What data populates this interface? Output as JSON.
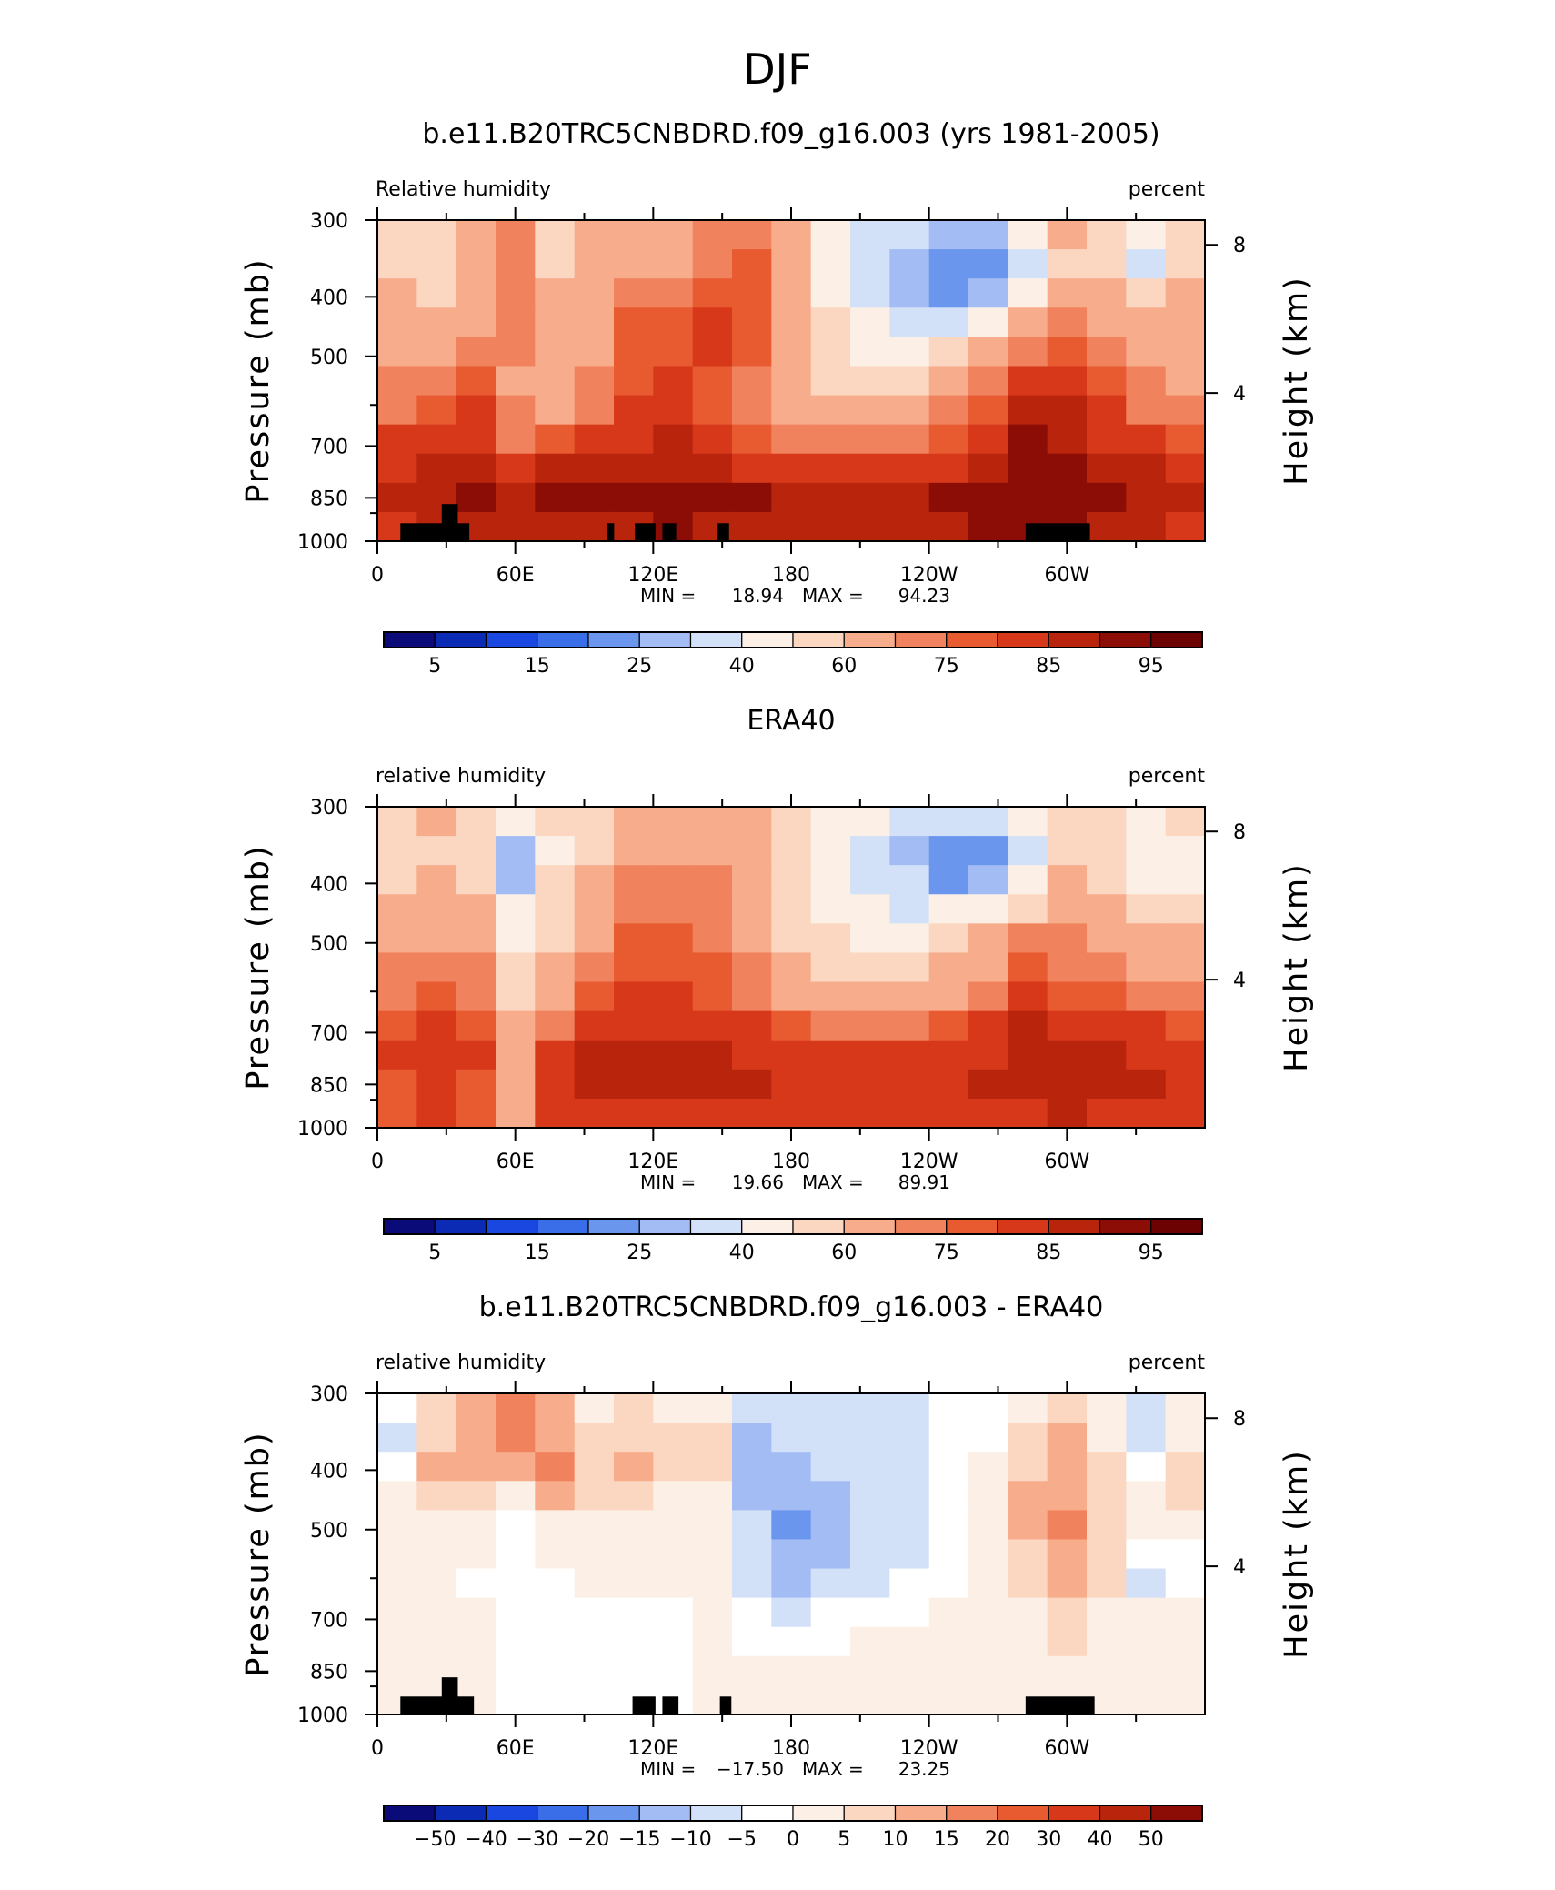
{
  "figure": {
    "super_title": "DJF"
  },
  "colors": {
    "rh_levels": [
      "#0a0a78",
      "#0c2bb4",
      "#1947e0",
      "#3a6ee8",
      "#6b96ee",
      "#a3bdf4",
      "#d2e0f8",
      "#fcf0e6",
      "#fbd6c0",
      "#f7ac8c",
      "#f0835e",
      "#e85a30",
      "#d8381a",
      "#b8240c",
      "#8c0c06",
      "#6c0202"
    ],
    "diff_levels": [
      "#0a0a78",
      "#0c2bb4",
      "#1947e0",
      "#3a6ee8",
      "#6b96ee",
      "#a3bdf4",
      "#d2e0f8",
      "#ffffff",
      "#fcf0e6",
      "#fbd6c0",
      "#f7ac8c",
      "#f0835e",
      "#e85a30",
      "#d8381a",
      "#b8240c",
      "#8c0c06"
    ],
    "topography": "#000000"
  },
  "chart_data": [
    {
      "type": "heatmap",
      "title": "b.e11.B20TRC5CNBDRD.f09_g16.003 (yrs 1981-2005)",
      "left_label": "Relative humidity",
      "right_label": "percent",
      "ylabel": "Pressure (mb)",
      "ylabel2": "Height (km)",
      "x_ticks": [
        "0",
        "60E",
        "120E",
        "180",
        "120W",
        "60W"
      ],
      "x_tick_values": [
        0,
        60,
        120,
        180,
        240,
        300
      ],
      "xlim": [
        0,
        360
      ],
      "y_ticks": [
        "300",
        "400",
        "500",
        "700",
        "850",
        "1000"
      ],
      "y_tick_values": [
        300,
        400,
        500,
        700,
        850,
        1000
      ],
      "ylim": [
        300,
        1000
      ],
      "y2_ticks": [
        "8",
        "4"
      ],
      "y2_tick_values": [
        8,
        4
      ],
      "stats": {
        "min_label": "MIN =",
        "min": "18.94",
        "max_label": "MAX =",
        "max": "94.23"
      },
      "colorbar": {
        "labels": [
          "5",
          "15",
          "25",
          "40",
          "60",
          "75",
          "85",
          "95"
        ]
      },
      "grid": [
        [
          55,
          52,
          60,
          72,
          55,
          60,
          62,
          62,
          70,
          74,
          60,
          48,
          38,
          30,
          28,
          26,
          40,
          62,
          58,
          40,
          56
        ],
        [
          58,
          55,
          62,
          72,
          58,
          62,
          68,
          68,
          74,
          76,
          62,
          46,
          34,
          27,
          24,
          22,
          34,
          58,
          56,
          38,
          58
        ],
        [
          60,
          58,
          64,
          72,
          60,
          64,
          74,
          74,
          78,
          78,
          64,
          48,
          36,
          28,
          22,
          28,
          46,
          64,
          60,
          50,
          60
        ],
        [
          62,
          62,
          68,
          72,
          62,
          66,
          76,
          76,
          80,
          78,
          64,
          50,
          40,
          34,
          36,
          44,
          60,
          70,
          66,
          62,
          64
        ],
        [
          66,
          68,
          72,
          70,
          64,
          68,
          78,
          78,
          80,
          76,
          64,
          54,
          48,
          46,
          52,
          62,
          74,
          78,
          72,
          68,
          66
        ],
        [
          70,
          72,
          76,
          68,
          66,
          70,
          78,
          80,
          78,
          74,
          66,
          58,
          56,
          58,
          64,
          72,
          82,
          84,
          76,
          70,
          66
        ],
        [
          74,
          76,
          80,
          70,
          68,
          72,
          80,
          82,
          78,
          72,
          66,
          62,
          62,
          64,
          70,
          78,
          88,
          86,
          80,
          74,
          72
        ],
        [
          80,
          82,
          84,
          74,
          76,
          80,
          82,
          86,
          80,
          76,
          72,
          70,
          70,
          72,
          76,
          82,
          90,
          88,
          84,
          80,
          78
        ],
        [
          84,
          86,
          88,
          84,
          86,
          86,
          86,
          88,
          86,
          84,
          82,
          80,
          80,
          82,
          84,
          88,
          92,
          90,
          88,
          86,
          84
        ],
        [
          86,
          88,
          90,
          88,
          90,
          90,
          90,
          92,
          90,
          90,
          88,
          88,
          88,
          88,
          90,
          92,
          94,
          92,
          90,
          88,
          86
        ],
        [
          84,
          86,
          88,
          86,
          88,
          88,
          88,
          90,
          88,
          88,
          88,
          88,
          88,
          88,
          88,
          90,
          92,
          90,
          88,
          86,
          84
        ]
      ],
      "topography": [
        {
          "x0": 10,
          "x1": 40,
          "p": 935
        },
        {
          "x0": 28,
          "x1": 35,
          "p": 870
        },
        {
          "x0": 100,
          "x1": 103,
          "p": 935
        },
        {
          "x0": 112,
          "x1": 121,
          "p": 935
        },
        {
          "x0": 124,
          "x1": 130,
          "p": 935
        },
        {
          "x0": 148,
          "x1": 153,
          "p": 935
        },
        {
          "x0": 282,
          "x1": 310,
          "p": 935
        }
      ]
    },
    {
      "type": "heatmap",
      "title": "ERA40",
      "left_label": "relative humidity",
      "right_label": "percent",
      "ylabel": "Pressure (mb)",
      "ylabel2": "Height (km)",
      "x_ticks": [
        "0",
        "60E",
        "120E",
        "180",
        "120W",
        "60W"
      ],
      "x_tick_values": [
        0,
        60,
        120,
        180,
        240,
        300
      ],
      "xlim": [
        0,
        360
      ],
      "y_ticks": [
        "300",
        "400",
        "500",
        "700",
        "850",
        "1000"
      ],
      "y_tick_values": [
        300,
        400,
        500,
        700,
        850,
        1000
      ],
      "ylim": [
        300,
        1000
      ],
      "y2_ticks": [
        "8",
        "4"
      ],
      "y2_tick_values": [
        8,
        4
      ],
      "stats": {
        "min_label": "MIN =",
        "min": "19.66",
        "max_label": "MAX =",
        "max": "89.91"
      },
      "colorbar": {
        "labels": [
          "5",
          "15",
          "25",
          "40",
          "60",
          "75",
          "85",
          "95"
        ]
      },
      "grid": [
        [
          56,
          60,
          58,
          40,
          56,
          58,
          64,
          66,
          66,
          60,
          54,
          46,
          40,
          34,
          32,
          30,
          42,
          58,
          56,
          44,
          50
        ],
        [
          56,
          58,
          54,
          26,
          48,
          58,
          66,
          68,
          68,
          62,
          54,
          44,
          34,
          28,
          24,
          22,
          34,
          56,
          54,
          40,
          44
        ],
        [
          58,
          60,
          56,
          28,
          50,
          62,
          70,
          72,
          70,
          64,
          54,
          44,
          36,
          30,
          24,
          26,
          42,
          62,
          58,
          44,
          48
        ],
        [
          62,
          64,
          60,
          40,
          54,
          66,
          74,
          74,
          72,
          66,
          56,
          48,
          42,
          38,
          40,
          46,
          58,
          66,
          62,
          56,
          56
        ],
        [
          66,
          68,
          66,
          48,
          58,
          68,
          76,
          76,
          74,
          68,
          58,
          52,
          48,
          48,
          54,
          62,
          70,
          70,
          66,
          62,
          62
        ],
        [
          70,
          72,
          70,
          52,
          62,
          72,
          78,
          78,
          76,
          70,
          60,
          56,
          56,
          58,
          62,
          68,
          78,
          74,
          70,
          68,
          66
        ],
        [
          74,
          76,
          74,
          56,
          66,
          76,
          80,
          80,
          78,
          74,
          66,
          62,
          62,
          64,
          68,
          74,
          84,
          78,
          76,
          72,
          70
        ],
        [
          78,
          80,
          78,
          60,
          72,
          80,
          84,
          84,
          82,
          80,
          76,
          72,
          72,
          74,
          76,
          80,
          86,
          82,
          82,
          80,
          78
        ],
        [
          80,
          84,
          80,
          62,
          82,
          86,
          88,
          88,
          86,
          84,
          82,
          80,
          80,
          80,
          82,
          84,
          88,
          86,
          86,
          84,
          82
        ],
        [
          78,
          82,
          78,
          62,
          84,
          88,
          88,
          88,
          86,
          86,
          84,
          82,
          82,
          82,
          84,
          86,
          86,
          88,
          86,
          86,
          84
        ],
        [
          76,
          80,
          76,
          60,
          80,
          84,
          84,
          84,
          84,
          84,
          82,
          80,
          80,
          80,
          82,
          84,
          84,
          86,
          84,
          84,
          82
        ]
      ]
    },
    {
      "type": "heatmap",
      "title": "b.e11.B20TRC5CNBDRD.f09_g16.003 - ERA40",
      "left_label": "relative humidity",
      "right_label": "percent",
      "ylabel": "Pressure (mb)",
      "ylabel2": "Height (km)",
      "x_ticks": [
        "0",
        "60E",
        "120E",
        "180",
        "120W",
        "60W"
      ],
      "x_tick_values": [
        0,
        60,
        120,
        180,
        240,
        300
      ],
      "xlim": [
        0,
        360
      ],
      "y_ticks": [
        "300",
        "400",
        "500",
        "700",
        "850",
        "1000"
      ],
      "y_tick_values": [
        300,
        400,
        500,
        700,
        850,
        1000
      ],
      "ylim": [
        300,
        1000
      ],
      "y2_ticks": [
        "8",
        "4"
      ],
      "y2_tick_values": [
        8,
        4
      ],
      "stats": {
        "min_label": "MIN =",
        "min": "−17.50",
        "max_label": "MAX =",
        "max": "23.25"
      },
      "colorbar": {
        "labels": [
          "−50",
          "−40",
          "−30",
          "−20",
          "−15",
          "−10",
          "−5",
          "0",
          "5",
          "10",
          "15",
          "20",
          "30",
          "40",
          "50"
        ]
      },
      "grid": [
        [
          -4,
          8,
          14,
          18,
          10,
          4,
          6,
          4,
          4,
          -10,
          -8,
          -10,
          -8,
          -6,
          -4,
          -2,
          4,
          8,
          4,
          -6,
          2
        ],
        [
          -6,
          6,
          12,
          16,
          14,
          6,
          8,
          6,
          6,
          -12,
          -10,
          -10,
          -8,
          -6,
          -4,
          -2,
          6,
          10,
          4,
          -8,
          4
        ],
        [
          -2,
          10,
          14,
          12,
          18,
          8,
          10,
          8,
          8,
          -14,
          -12,
          -10,
          -8,
          -6,
          -4,
          4,
          8,
          12,
          6,
          -4,
          8
        ],
        [
          2,
          6,
          8,
          4,
          10,
          6,
          6,
          4,
          4,
          -12,
          -14,
          -12,
          -10,
          -6,
          -4,
          4,
          10,
          14,
          8,
          2,
          8
        ],
        [
          4,
          4,
          2,
          -2,
          2,
          2,
          4,
          2,
          2,
          -10,
          -16,
          -14,
          -10,
          -6,
          -4,
          2,
          10,
          16,
          8,
          4,
          4
        ],
        [
          4,
          2,
          0,
          -4,
          0,
          2,
          2,
          2,
          2,
          -8,
          -14,
          -12,
          -10,
          -6,
          -4,
          4,
          8,
          12,
          6,
          -4,
          -2
        ],
        [
          2,
          2,
          -2,
          -4,
          -2,
          2,
          2,
          2,
          2,
          -6,
          -12,
          -10,
          -6,
          -4,
          -2,
          2,
          6,
          10,
          6,
          -6,
          -2
        ],
        [
          0,
          2,
          0,
          -2,
          -2,
          -2,
          -2,
          -2,
          0,
          -4,
          -6,
          -4,
          -4,
          -2,
          0,
          2,
          4,
          8,
          4,
          0,
          2
        ],
        [
          0,
          2,
          0,
          -2,
          -2,
          -2,
          -4,
          -2,
          0,
          -2,
          -4,
          -2,
          0,
          0,
          2,
          4,
          4,
          6,
          2,
          2,
          2
        ],
        [
          0,
          0,
          0,
          -2,
          -2,
          -2,
          -4,
          -2,
          0,
          0,
          0,
          2,
          2,
          2,
          2,
          4,
          4,
          4,
          2,
          2,
          2
        ],
        [
          0,
          0,
          0,
          -2,
          -2,
          -2,
          -2,
          -2,
          0,
          0,
          2,
          2,
          2,
          2,
          2,
          4,
          4,
          2,
          2,
          2,
          2
        ]
      ],
      "topography": [
        {
          "x0": 10,
          "x1": 42,
          "p": 935
        },
        {
          "x0": 28,
          "x1": 35,
          "p": 870
        },
        {
          "x0": 111,
          "x1": 121,
          "p": 935
        },
        {
          "x0": 124,
          "x1": 131,
          "p": 935
        },
        {
          "x0": 149,
          "x1": 154,
          "p": 935
        },
        {
          "x0": 282,
          "x1": 312,
          "p": 935
        }
      ]
    }
  ]
}
